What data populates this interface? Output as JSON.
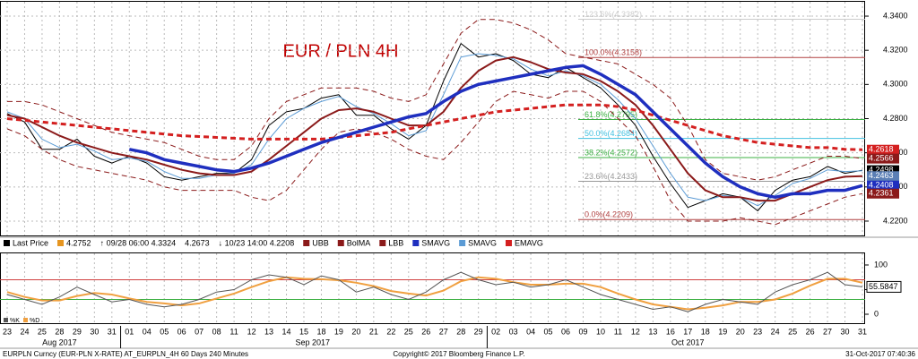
{
  "chart_data": {
    "type": "line",
    "title": "EUR / PLN 4H",
    "title_color": "#c00000",
    "categories": [
      "23",
      "24",
      "25",
      "28",
      "29",
      "30",
      "31",
      "01",
      "04",
      "05",
      "06",
      "07",
      "08",
      "11",
      "12",
      "13",
      "14",
      "15",
      "18",
      "19",
      "20",
      "21",
      "22",
      "25",
      "26",
      "27",
      "28",
      "29",
      "02",
      "03",
      "04",
      "05",
      "06",
      "09",
      "10",
      "11",
      "12",
      "13",
      "16",
      "17",
      "18",
      "19",
      "20",
      "23",
      "24",
      "25",
      "26",
      "27",
      "30",
      "31"
    ],
    "months": [
      {
        "label": "Aug 2017",
        "index": 3
      },
      {
        "label": "Sep 2017",
        "index": 17.5
      },
      {
        "label": "Oct 2017",
        "index": 39
      }
    ],
    "ylim": [
      4.2116,
      4.3484
    ],
    "yticks": [
      {
        "value": 4.22,
        "label": "4.2200"
      },
      {
        "value": 4.24,
        "label": "4.2400"
      },
      {
        "value": 4.26,
        "label": "4.2600"
      },
      {
        "value": 4.28,
        "label": "4.2800"
      },
      {
        "value": 4.3,
        "label": "4.3000"
      },
      {
        "value": 4.32,
        "label": "4.3200"
      },
      {
        "value": 4.34,
        "label": "4.3400"
      }
    ],
    "grid": true,
    "series": [
      {
        "name": "Last Price",
        "color": "#000000",
        "width": 1,
        "dash": false,
        "values": [
          4.283,
          4.278,
          4.262,
          4.262,
          4.268,
          4.258,
          4.254,
          4.258,
          4.254,
          4.246,
          4.244,
          4.246,
          4.248,
          4.248,
          4.256,
          4.276,
          4.284,
          4.286,
          4.292,
          4.294,
          4.282,
          4.282,
          4.274,
          4.268,
          4.276,
          4.302,
          4.324,
          4.316,
          4.318,
          4.314,
          4.306,
          4.304,
          4.31,
          4.304,
          4.298,
          4.288,
          4.276,
          4.258,
          4.242,
          4.228,
          4.232,
          4.236,
          4.234,
          4.226,
          4.238,
          4.244,
          4.246,
          4.252,
          4.248,
          4.2498
        ]
      },
      {
        "name": "UBB",
        "color": "#8b1a1a",
        "width": 1,
        "dash": true,
        "values": [
          4.29,
          4.29,
          4.288,
          4.284,
          4.28,
          4.276,
          4.272,
          4.27,
          4.268,
          4.266,
          4.262,
          4.258,
          4.256,
          4.256,
          4.264,
          4.28,
          4.29,
          4.294,
          4.298,
          4.298,
          4.298,
          4.296,
          4.292,
          4.29,
          4.294,
          4.312,
          4.33,
          4.338,
          4.338,
          4.336,
          4.332,
          4.326,
          4.318,
          4.316,
          4.314,
          4.312,
          4.306,
          4.3,
          4.292,
          4.276,
          4.256,
          4.248,
          4.246,
          4.244,
          4.246,
          4.25,
          4.254,
          4.258,
          4.258,
          4.2566
        ]
      },
      {
        "name": "BolMA",
        "color": "#8b1a1a",
        "width": 2,
        "dash": false,
        "values": [
          4.282,
          4.28,
          4.275,
          4.27,
          4.266,
          4.263,
          4.26,
          4.258,
          4.256,
          4.253,
          4.25,
          4.248,
          4.247,
          4.247,
          4.249,
          4.256,
          4.264,
          4.272,
          4.28,
          4.285,
          4.286,
          4.284,
          4.28,
          4.276,
          4.276,
          4.284,
          4.298,
          4.308,
          4.314,
          4.316,
          4.313,
          4.309,
          4.307,
          4.306,
          4.302,
          4.296,
          4.288,
          4.276,
          4.262,
          4.248,
          4.238,
          4.234,
          4.234,
          4.232,
          4.232,
          4.236,
          4.24,
          4.244,
          4.246,
          4.2463
        ]
      },
      {
        "name": "LBB",
        "color": "#8b1a1a",
        "width": 1,
        "dash": true,
        "values": [
          4.274,
          4.27,
          4.262,
          4.256,
          4.252,
          4.25,
          4.248,
          4.246,
          4.244,
          4.24,
          4.238,
          4.238,
          4.238,
          4.238,
          4.234,
          4.232,
          4.238,
          4.25,
          4.262,
          4.272,
          4.274,
          4.272,
          4.268,
          4.262,
          4.258,
          4.256,
          4.266,
          4.278,
          4.29,
          4.296,
          4.294,
          4.292,
          4.296,
          4.296,
          4.29,
          4.28,
          4.27,
          4.252,
          4.232,
          4.22,
          4.22,
          4.22,
          4.222,
          4.22,
          4.218,
          4.222,
          4.226,
          4.23,
          4.234,
          4.2361
        ]
      },
      {
        "name": "SMAVG",
        "color": "#1f2fbf",
        "width": 3.5,
        "dash": false,
        "values": [
          null,
          null,
          null,
          null,
          null,
          null,
          null,
          4.262,
          4.26,
          4.256,
          4.254,
          4.252,
          4.25,
          4.249,
          4.251,
          4.254,
          4.258,
          4.262,
          4.266,
          4.269,
          4.272,
          4.275,
          4.278,
          4.281,
          4.283,
          4.29,
          4.296,
          4.3,
          4.302,
          4.304,
          4.306,
          4.308,
          4.31,
          4.311,
          4.306,
          4.3,
          4.294,
          4.284,
          4.274,
          4.264,
          4.254,
          4.246,
          4.24,
          4.236,
          4.234,
          4.236,
          4.236,
          4.238,
          4.238,
          4.2408
        ]
      },
      {
        "name": "SMAVG",
        "color": "#5b9bd5",
        "width": 1,
        "dash": false,
        "values": [
          4.284,
          4.28,
          4.268,
          4.263,
          4.265,
          4.261,
          4.256,
          4.257,
          4.255,
          4.249,
          4.245,
          4.245,
          4.247,
          4.248,
          4.253,
          4.268,
          4.28,
          4.286,
          4.29,
          4.293,
          4.287,
          4.283,
          4.277,
          4.27,
          4.273,
          4.294,
          4.316,
          4.318,
          4.317,
          4.315,
          4.309,
          4.305,
          4.308,
          4.305,
          4.3,
          4.291,
          4.28,
          4.264,
          4.248,
          4.234,
          4.232,
          4.235,
          4.234,
          4.229,
          4.235,
          4.242,
          4.245,
          4.25,
          4.249,
          4.2495
        ]
      },
      {
        "name": "EMAVG",
        "color": "#d42020",
        "width": 3,
        "dash": true,
        "values": [
          4.28,
          4.279,
          4.278,
          4.277,
          4.276,
          4.275,
          4.274,
          4.273,
          4.272,
          4.271,
          4.27,
          4.2695,
          4.269,
          4.2685,
          4.268,
          4.268,
          4.268,
          4.268,
          4.268,
          4.269,
          4.27,
          4.271,
          4.272,
          4.274,
          4.276,
          4.278,
          4.28,
          4.282,
          4.284,
          4.285,
          4.286,
          4.287,
          4.288,
          4.288,
          4.288,
          4.287,
          4.285,
          4.282,
          4.279,
          4.276,
          4.273,
          4.27,
          4.268,
          4.266,
          4.265,
          4.264,
          4.263,
          4.263,
          4.262,
          4.2618
        ]
      }
    ],
    "legend_stats": [
      {
        "text": "4.2752",
        "color": "#e69520"
      },
      {
        "text": "↑ 09/28 06:00 4.3324"
      },
      {
        "text": "4.2673"
      },
      {
        "text": "↓ 10/23 14:00 4.2208"
      }
    ],
    "fib_levels": [
      {
        "label": "123.6%(4.3382)",
        "value": 4.3382,
        "color": "#cccccc"
      },
      {
        "label": "100.0%(4.3158)",
        "value": 4.3158,
        "color": "#b04040"
      },
      {
        "label": "61.8%(4.2795)",
        "value": 4.2795,
        "color": "#3cb043"
      },
      {
        "label": "50.0%(4.2684)",
        "value": 4.2684,
        "color": "#40c0e0"
      },
      {
        "label": "38.2%(4.2572)",
        "value": 4.2572,
        "color": "#3cb043"
      },
      {
        "label": "23.6%(4.2433)",
        "value": 4.2433,
        "color": "#999999"
      },
      {
        "label": "0.0%(4.2209)",
        "value": 4.2209,
        "color": "#b04040"
      }
    ],
    "value_tags": [
      {
        "value": 4.2618,
        "color": "#d42020"
      },
      {
        "value": 4.2566,
        "color": "#8b1a1a"
      },
      {
        "value": 4.2498,
        "color": "#000000"
      },
      {
        "value": 4.2463,
        "color": "#5b7fb5"
      },
      {
        "value": 4.2408,
        "color": "#1f2fbf"
      },
      {
        "value": 4.2361,
        "color": "#8b1a1a"
      }
    ],
    "oscillator": {
      "ylim": [
        -20,
        123.6
      ],
      "yticks": [
        100,
        50,
        0
      ],
      "levels": [
        {
          "value": 70,
          "color": "#d04040"
        },
        {
          "value": 30,
          "color": "#3cb043"
        }
      ],
      "series": [
        {
          "name": "%K",
          "color": "#555555",
          "values": [
            40,
            30,
            20,
            35,
            55,
            40,
            25,
            30,
            20,
            15,
            20,
            30,
            45,
            50,
            70,
            80,
            75,
            60,
            78,
            70,
            45,
            55,
            40,
            30,
            45,
            70,
            85,
            70,
            60,
            65,
            55,
            60,
            70,
            55,
            40,
            30,
            20,
            10,
            15,
            5,
            20,
            30,
            25,
            20,
            45,
            60,
            70,
            85,
            60,
            55.5847
          ]
        },
        {
          "name": "%D",
          "color": "#f0a040",
          "values": [
            45,
            35,
            28,
            28,
            37,
            43,
            40,
            32,
            25,
            22,
            18,
            22,
            32,
            42,
            55,
            67,
            75,
            72,
            71,
            69,
            64,
            57,
            47,
            42,
            38,
            48,
            67,
            75,
            72,
            65,
            60,
            60,
            62,
            62,
            55,
            42,
            30,
            20,
            15,
            10,
            13,
            18,
            25,
            25,
            30,
            42,
            58,
            72,
            72,
            64
          ]
        }
      ],
      "tag": 55.5847
    },
    "footer": {
      "left": "EURPLN Curncy (EUR-PLN X-RATE) AT_EURPLN_4H 60 Days 240 Minutes",
      "center": "Copyright© 2017 Bloomberg Finance L.P.",
      "right": "31-Oct-2017 07:40:36"
    }
  }
}
